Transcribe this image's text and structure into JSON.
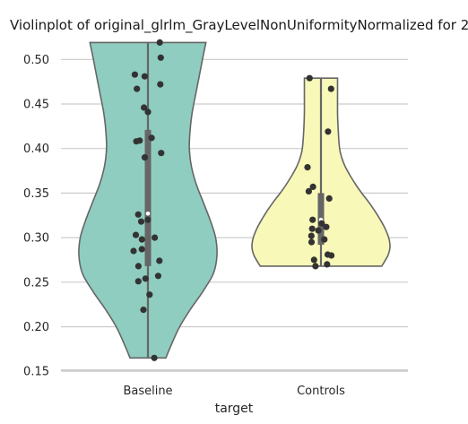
{
  "chart_data": {
    "type": "violin",
    "title": "Violinplot of original_glrlm_GrayLevelNonUniformityNormalized for 2",
    "xlabel": "target",
    "ylabel": "",
    "ylim": [
      0.15,
      0.53
    ],
    "yticks": [
      "0.15",
      "0.20",
      "0.25",
      "0.30",
      "0.35",
      "0.40",
      "0.45",
      "0.50"
    ],
    "grid": true,
    "categories": [
      "Baseline",
      "Controls"
    ],
    "colors": [
      "#8fcdc0",
      "#f8f8b8"
    ],
    "groups": [
      {
        "name": "Baseline",
        "min": 0.165,
        "max": 0.519,
        "q1": 0.268,
        "median": 0.327,
        "q3": 0.421,
        "profile": [
          [
            0.165,
            0.26
          ],
          [
            0.18,
            0.34
          ],
          [
            0.2,
            0.46
          ],
          [
            0.22,
            0.62
          ],
          [
            0.24,
            0.8
          ],
          [
            0.26,
            0.95
          ],
          [
            0.28,
            1.0
          ],
          [
            0.3,
            0.98
          ],
          [
            0.32,
            0.9
          ],
          [
            0.34,
            0.8
          ],
          [
            0.36,
            0.7
          ],
          [
            0.38,
            0.63
          ],
          [
            0.4,
            0.6
          ],
          [
            0.42,
            0.61
          ],
          [
            0.44,
            0.64
          ],
          [
            0.46,
            0.69
          ],
          [
            0.48,
            0.74
          ],
          [
            0.5,
            0.79
          ],
          [
            0.519,
            0.84
          ]
        ],
        "points": [
          0.519,
          0.502,
          0.483,
          0.481,
          0.472,
          0.467,
          0.446,
          0.441,
          0.412,
          0.409,
          0.408,
          0.395,
          0.39,
          0.326,
          0.32,
          0.318,
          0.303,
          0.3,
          0.298,
          0.287,
          0.285,
          0.274,
          0.268,
          0.257,
          0.254,
          0.251,
          0.236,
          0.219,
          0.165
        ]
      },
      {
        "name": "Controls",
        "min": 0.268,
        "max": 0.479,
        "q1": 0.292,
        "median": 0.32,
        "q3": 0.35,
        "profile": [
          [
            0.268,
            0.88
          ],
          [
            0.28,
            0.97
          ],
          [
            0.29,
            1.0
          ],
          [
            0.3,
            0.98
          ],
          [
            0.31,
            0.93
          ],
          [
            0.32,
            0.86
          ],
          [
            0.33,
            0.78
          ],
          [
            0.34,
            0.69
          ],
          [
            0.35,
            0.59
          ],
          [
            0.36,
            0.5
          ],
          [
            0.37,
            0.42
          ],
          [
            0.38,
            0.35
          ],
          [
            0.39,
            0.3
          ],
          [
            0.4,
            0.27
          ],
          [
            0.42,
            0.25
          ],
          [
            0.44,
            0.24
          ],
          [
            0.46,
            0.24
          ],
          [
            0.479,
            0.24
          ]
        ],
        "points": [
          0.479,
          0.467,
          0.419,
          0.379,
          0.357,
          0.352,
          0.344,
          0.32,
          0.316,
          0.312,
          0.31,
          0.308,
          0.302,
          0.298,
          0.295,
          0.281,
          0.28,
          0.275,
          0.27,
          0.268
        ]
      }
    ]
  }
}
